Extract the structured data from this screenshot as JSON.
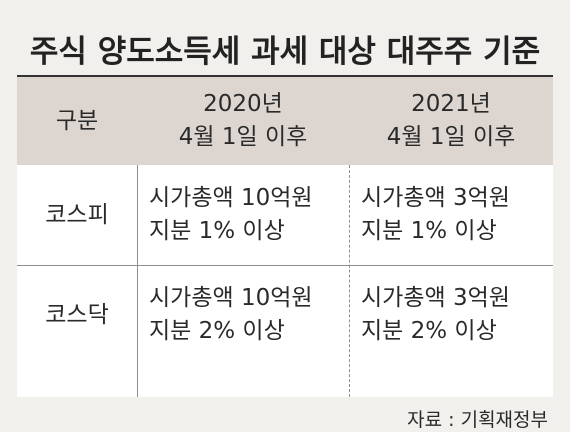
{
  "title": "주식 양도소득세 과세 대상 대주주 기준",
  "table": {
    "header": {
      "category": "구분",
      "col1_line1": "2020년",
      "col1_line2": "4월 1일 이후",
      "col2_line1": "2021년",
      "col2_line2": "4월 1일 이후"
    },
    "rows": [
      {
        "label": "코스피",
        "col1_line1": "시가총액 10억원",
        "col1_line2": "지분 1% 이상",
        "col2_line1": "시가총액 3억원",
        "col2_line2": "지분 1% 이상"
      },
      {
        "label": "코스닥",
        "col1_line1": "시가총액 10억원",
        "col1_line2": "지분 2% 이상",
        "col2_line1": "시가총액 3억원",
        "col2_line2": "지분 2% 이상"
      }
    ]
  },
  "source": "자료 : 기획재정부"
}
